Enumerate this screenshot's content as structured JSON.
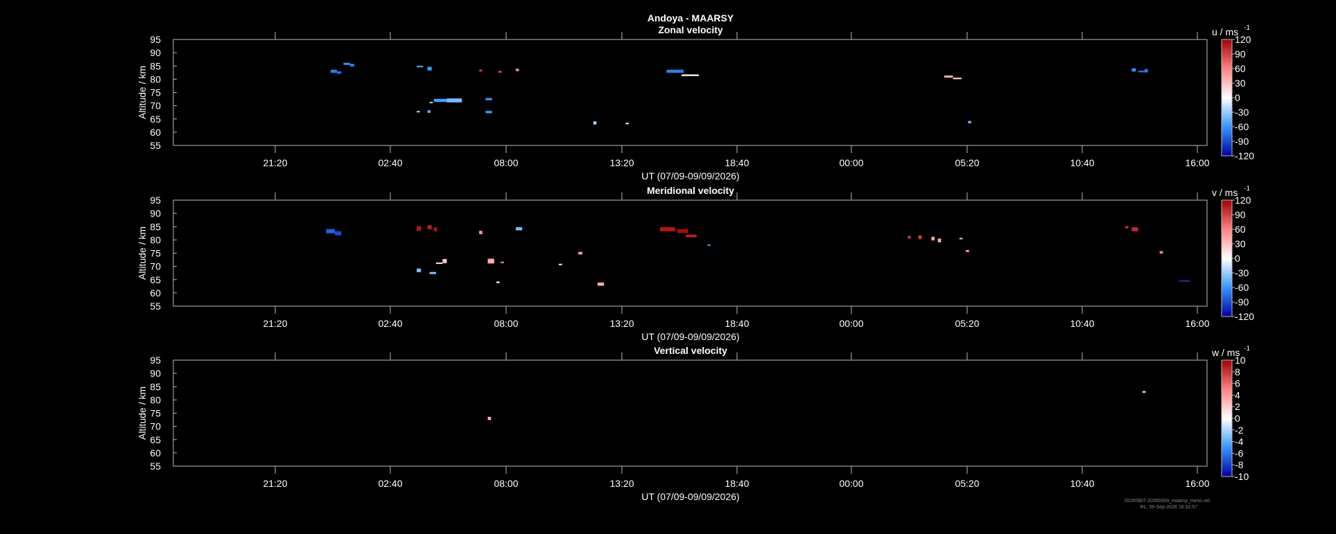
{
  "title": "Andoya - MAARSY",
  "footer": {
    "line1": "20260907-20260909_maarsy_meso.vel",
    "line2": "RL, 09-Sep-2026 18:32:57"
  },
  "chart_data": [
    {
      "type": "heatmap",
      "title": "Zonal velocity",
      "xlabel": "UT (07/09-09/09/2026)",
      "ylabel": "Altitude / km",
      "ylim": [
        55,
        95
      ],
      "yticks": [
        "95",
        "90",
        "85",
        "80",
        "75",
        "70",
        "65",
        "60",
        "55"
      ],
      "xtick_labels": [
        "21:20",
        "02:40",
        "08:00",
        "13:20",
        "18:40",
        "00:00",
        "05:20",
        "10:40",
        "16:00"
      ],
      "x_unit": "hours since 07/09/2026 00:00",
      "xlim": [
        16.7,
        64.7
      ],
      "colorbar": {
        "label": "u / ms",
        "exp": "-1",
        "ticks": [
          "120",
          "90",
          "60",
          "30",
          "0",
          "-30",
          "-60",
          "-90",
          "-120"
        ],
        "range": [
          -120,
          120
        ]
      },
      "cells": [
        [
          24.0,
          83.0,
          0.3,
          1.2,
          -70
        ],
        [
          24.3,
          82.5,
          0.2,
          1.0,
          -80
        ],
        [
          24.6,
          85.8,
          0.3,
          0.8,
          -60
        ],
        [
          24.9,
          85.3,
          0.2,
          1.0,
          -70
        ],
        [
          28.0,
          84.8,
          0.3,
          0.6,
          -55
        ],
        [
          28.5,
          84.0,
          0.2,
          1.4,
          -60
        ],
        [
          28.8,
          72.0,
          0.8,
          1.2,
          -55
        ],
        [
          29.4,
          72.0,
          0.7,
          1.5,
          -40
        ],
        [
          28.0,
          67.8,
          0.15,
          0.4,
          -20
        ],
        [
          28.5,
          67.8,
          0.15,
          1.0,
          -50
        ],
        [
          28.6,
          71.2,
          0.15,
          0.5,
          -20
        ],
        [
          30.9,
          83.3,
          0.15,
          0.7,
          90
        ],
        [
          31.8,
          82.8,
          0.15,
          0.6,
          80
        ],
        [
          32.6,
          83.5,
          0.15,
          0.9,
          55
        ],
        [
          31.2,
          72.5,
          0.3,
          0.8,
          -55
        ],
        [
          31.2,
          67.6,
          0.3,
          0.9,
          -60
        ],
        [
          36.2,
          63.5,
          0.15,
          1.2,
          -30
        ],
        [
          37.7,
          63.3,
          0.15,
          0.5,
          10
        ],
        [
          39.6,
          83.0,
          0.8,
          1.2,
          -70
        ],
        [
          40.3,
          81.5,
          0.8,
          0.6,
          0
        ],
        [
          52.5,
          81.0,
          0.4,
          0.8,
          40
        ],
        [
          52.9,
          80.3,
          0.4,
          0.6,
          30
        ],
        [
          53.6,
          63.8,
          0.15,
          0.9,
          -45
        ],
        [
          61.2,
          83.5,
          0.2,
          1.2,
          -65
        ],
        [
          61.5,
          82.9,
          0.3,
          0.6,
          -75
        ],
        [
          61.8,
          83.2,
          0.15,
          1.3,
          -70
        ]
      ]
    },
    {
      "type": "heatmap",
      "title": "Meridional velocity",
      "xlabel": "UT (07/09-09/09/2026)",
      "ylabel": "Altitude / km",
      "ylim": [
        55,
        95
      ],
      "yticks": [
        "95",
        "90",
        "85",
        "80",
        "75",
        "70",
        "65",
        "60",
        "55"
      ],
      "xtick_labels": [
        "21:20",
        "02:40",
        "08:00",
        "13:20",
        "18:40",
        "00:00",
        "05:20",
        "10:40",
        "16:00"
      ],
      "x_unit": "hours since 07/09/2026 00:00",
      "xlim": [
        16.7,
        64.7
      ],
      "colorbar": {
        "label": "v / ms",
        "exp": "-1",
        "ticks": [
          "120",
          "90",
          "60",
          "30",
          "0",
          "-30",
          "-60",
          "-90",
          "-120"
        ],
        "range": [
          -120,
          120
        ]
      },
      "cells": [
        [
          23.8,
          83.3,
          0.4,
          1.6,
          -80
        ],
        [
          24.2,
          82.5,
          0.3,
          1.6,
          -90
        ],
        [
          28.0,
          84.3,
          0.2,
          1.8,
          110
        ],
        [
          28.5,
          84.8,
          0.2,
          1.5,
          105
        ],
        [
          28.8,
          84.0,
          0.15,
          1.5,
          110
        ],
        [
          28.0,
          68.5,
          0.2,
          1.4,
          -40
        ],
        [
          28.6,
          67.5,
          0.3,
          0.8,
          -35
        ],
        [
          29.2,
          72.0,
          0.2,
          1.6,
          30
        ],
        [
          28.9,
          71.2,
          0.3,
          0.5,
          10
        ],
        [
          30.9,
          82.8,
          0.15,
          1.3,
          50
        ],
        [
          31.3,
          72.0,
          0.3,
          1.8,
          40
        ],
        [
          31.9,
          71.5,
          0.15,
          0.6,
          60
        ],
        [
          31.7,
          64.0,
          0.15,
          0.6,
          10
        ],
        [
          32.6,
          84.2,
          0.3,
          1.2,
          -40
        ],
        [
          34.6,
          70.8,
          0.15,
          0.4,
          5
        ],
        [
          35.5,
          75.0,
          0.2,
          1.0,
          50
        ],
        [
          36.4,
          63.3,
          0.3,
          1.2,
          40
        ],
        [
          39.3,
          84.0,
          0.7,
          1.6,
          110
        ],
        [
          40.1,
          83.3,
          0.5,
          1.5,
          115
        ],
        [
          40.5,
          81.5,
          0.5,
          1.0,
          105
        ],
        [
          41.5,
          78.0,
          0.15,
          0.5,
          -60
        ],
        [
          50.8,
          81.0,
          0.15,
          1.0,
          95
        ],
        [
          51.3,
          81.0,
          0.15,
          1.4,
          90
        ],
        [
          51.9,
          80.5,
          0.15,
          1.4,
          45
        ],
        [
          52.2,
          79.8,
          0.15,
          1.4,
          40
        ],
        [
          53.2,
          80.5,
          0.15,
          0.5,
          30
        ],
        [
          53.5,
          75.8,
          0.15,
          0.8,
          55
        ],
        [
          60.9,
          84.8,
          0.15,
          0.8,
          95
        ],
        [
          61.2,
          84.0,
          0.3,
          1.5,
          100
        ],
        [
          62.5,
          75.3,
          0.15,
          1.0,
          60
        ],
        [
          63.4,
          64.5,
          0.5,
          0.5,
          -100
        ]
      ]
    },
    {
      "type": "heatmap",
      "title": "Vertical velocity",
      "xlabel": "UT (07/09-09/09/2026)",
      "ylabel": "Altitude / km",
      "ylim": [
        55,
        95
      ],
      "yticks": [
        "95",
        "90",
        "85",
        "80",
        "75",
        "70",
        "65",
        "60",
        "55"
      ],
      "xtick_labels": [
        "21:20",
        "02:40",
        "08:00",
        "13:20",
        "18:40",
        "00:00",
        "05:20",
        "10:40",
        "16:00"
      ],
      "x_unit": "hours since 07/09/2026 00:00",
      "xlim": [
        16.7,
        64.7
      ],
      "colorbar": {
        "label": "w / ms",
        "exp": "-1",
        "ticks": [
          "10",
          "8",
          "6",
          "4",
          "2",
          "0",
          "-2",
          "-4",
          "-6",
          "-8",
          "-10"
        ],
        "range": [
          -10,
          10
        ]
      },
      "cells": [
        [
          31.3,
          73.0,
          0.15,
          1.2,
          3
        ],
        [
          61.7,
          83.0,
          0.15,
          0.6,
          1
        ]
      ]
    }
  ]
}
